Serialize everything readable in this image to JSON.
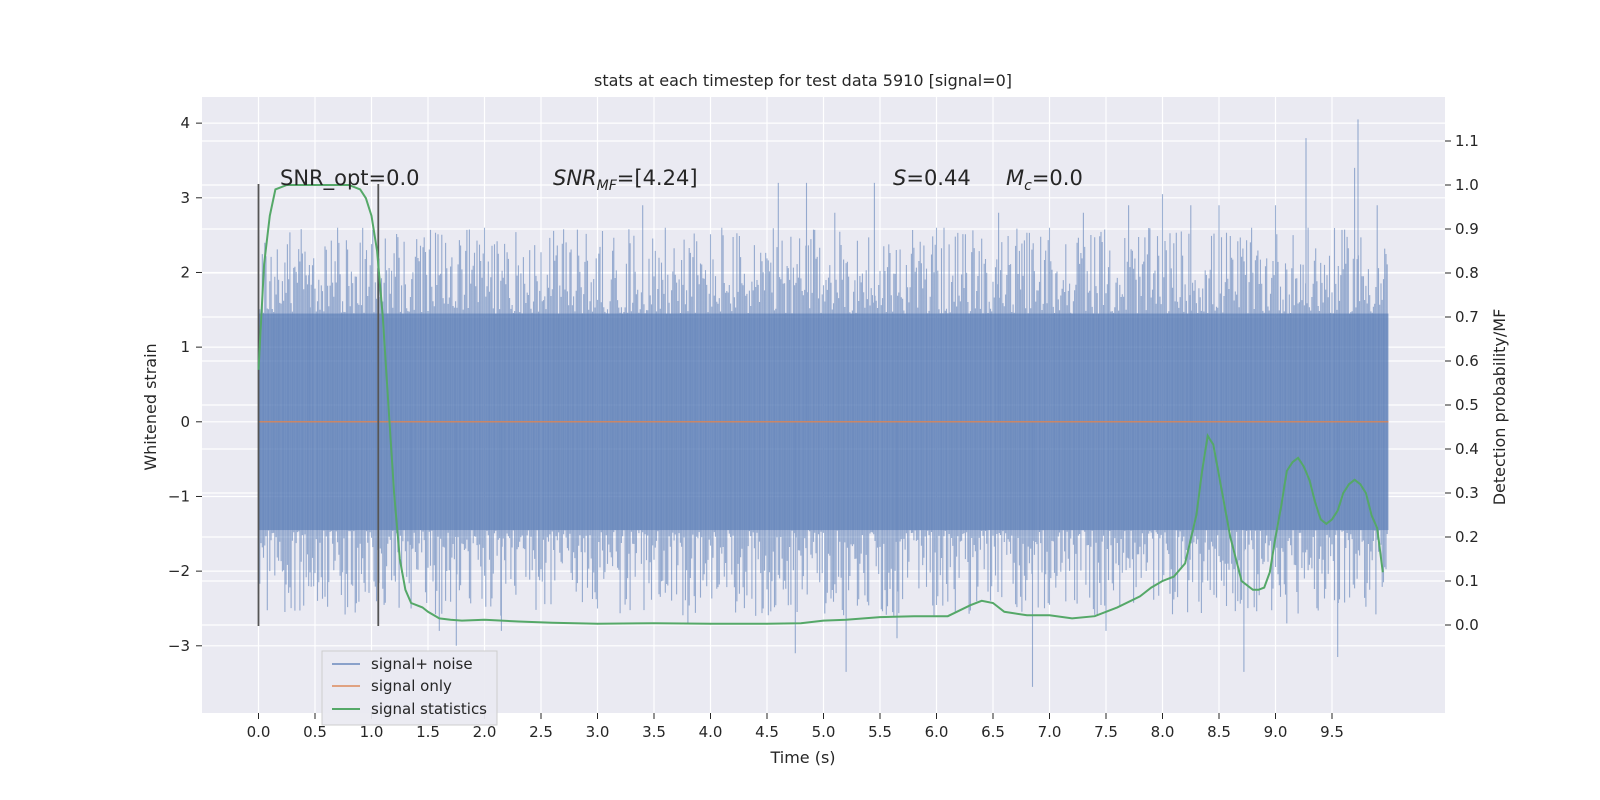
{
  "chart_data": {
    "type": "line",
    "title": "stats at each timestep for test data 5910 [signal=0]",
    "xlabel": "Time (s)",
    "ylabel": "Whitened strain",
    "y2label": "Detection probability/MF",
    "xlim": [
      -0.5,
      10.5
    ],
    "ylim": [
      -3.9,
      4.35
    ],
    "y2lim": [
      -0.2,
      1.2
    ],
    "x_ticks": [
      "0.0",
      "0.5",
      "1.0",
      "1.5",
      "2.0",
      "2.5",
      "3.0",
      "3.5",
      "4.0",
      "4.5",
      "5.0",
      "5.5",
      "6.0",
      "6.5",
      "7.0",
      "7.5",
      "8.0",
      "8.5",
      "9.0",
      "9.5"
    ],
    "y_ticks": [
      "4",
      "3",
      "2",
      "1",
      "0",
      "−1",
      "−2",
      "−3"
    ],
    "y2_ticks": [
      "1.1",
      "1.0",
      "0.9",
      "0.8",
      "0.7",
      "0.6",
      "0.5",
      "0.4",
      "0.3",
      "0.2",
      "0.1",
      "0.0"
    ],
    "grid": true,
    "legend_position": "bottom-left",
    "colors": {
      "background": "#eaeaf2",
      "grid": "#ffffff",
      "noise": "#4c72b0",
      "signal": "#dd8452",
      "stats": "#55a868",
      "vlines": "#555555"
    },
    "annotations": {
      "snr_opt": "SNR_opt=0.0",
      "snr_mf_base": "SNR",
      "snr_mf_sub": "MF",
      "snr_mf_value": "=[4.24]",
      "s_label": "S",
      "s_value": "=0.44",
      "mc_base": "M",
      "mc_sub": "c",
      "mc_value": "=0.0"
    },
    "vertical_lines_x": [
      0.0,
      1.06
    ],
    "vertical_lines_y2_range": [
      0.0,
      1.0
    ],
    "series": [
      {
        "name": "signal+ noise",
        "style": "noise band",
        "x_range": [
          0.0,
          10.0
        ],
        "core_range": [
          -1.45,
          1.45
        ],
        "extremes": [
          {
            "x": 0.0,
            "y": -2.3
          },
          {
            "x": 0.1,
            "y": -2.0
          },
          {
            "x": 0.45,
            "y": 2.1
          },
          {
            "x": 0.7,
            "y": 2.6
          },
          {
            "x": 0.9,
            "y": 2.4
          },
          {
            "x": 1.06,
            "y": -2.3
          },
          {
            "x": 1.2,
            "y": 2.2
          },
          {
            "x": 1.35,
            "y": -2.5
          },
          {
            "x": 1.6,
            "y": -2.8
          },
          {
            "x": 1.75,
            "y": -3.0
          },
          {
            "x": 2.0,
            "y": 2.6
          },
          {
            "x": 2.15,
            "y": -2.8
          },
          {
            "x": 2.4,
            "y": 2.3
          },
          {
            "x": 2.7,
            "y": 2.5
          },
          {
            "x": 3.0,
            "y": -2.5
          },
          {
            "x": 3.4,
            "y": 2.9
          },
          {
            "x": 3.6,
            "y": 2.6
          },
          {
            "x": 3.8,
            "y": -2.7
          },
          {
            "x": 4.1,
            "y": 2.6
          },
          {
            "x": 4.4,
            "y": -2.6
          },
          {
            "x": 4.6,
            "y": 3.2
          },
          {
            "x": 4.75,
            "y": -3.1
          },
          {
            "x": 4.85,
            "y": 3.2
          },
          {
            "x": 5.1,
            "y": 2.8
          },
          {
            "x": 5.2,
            "y": -3.35
          },
          {
            "x": 5.45,
            "y": 3.2
          },
          {
            "x": 5.65,
            "y": -2.9
          },
          {
            "x": 6.0,
            "y": 2.6
          },
          {
            "x": 6.3,
            "y": -2.5
          },
          {
            "x": 6.55,
            "y": 2.8
          },
          {
            "x": 6.85,
            "y": -3.55
          },
          {
            "x": 7.0,
            "y": 2.6
          },
          {
            "x": 7.3,
            "y": 2.8
          },
          {
            "x": 7.5,
            "y": -2.8
          },
          {
            "x": 7.7,
            "y": 2.9
          },
          {
            "x": 8.0,
            "y": 3.05
          },
          {
            "x": 8.25,
            "y": 2.9
          },
          {
            "x": 8.5,
            "y": 2.9
          },
          {
            "x": 8.72,
            "y": -3.35
          },
          {
            "x": 9.0,
            "y": 2.9
          },
          {
            "x": 9.1,
            "y": -2.7
          },
          {
            "x": 9.27,
            "y": 3.8
          },
          {
            "x": 9.55,
            "y": -3.15
          },
          {
            "x": 9.7,
            "y": 3.4
          },
          {
            "x": 9.73,
            "y": 4.05
          },
          {
            "x": 9.9,
            "y": 2.9
          }
        ]
      },
      {
        "name": "signal only",
        "x": [
          0.0,
          10.0
        ],
        "y": [
          0.0,
          0.0
        ]
      },
      {
        "name": "signal statistics",
        "axis": "right",
        "x": [
          0.0,
          0.05,
          0.1,
          0.15,
          0.25,
          0.35,
          0.5,
          0.6,
          0.7,
          0.8,
          0.9,
          0.95,
          1.0,
          1.05,
          1.1,
          1.15,
          1.2,
          1.25,
          1.3,
          1.35,
          1.4,
          1.45,
          1.5,
          1.6,
          1.7,
          1.8,
          2.0,
          2.3,
          2.6,
          3.0,
          3.5,
          4.0,
          4.5,
          4.8,
          5.0,
          5.2,
          5.5,
          5.8,
          6.1,
          6.3,
          6.4,
          6.5,
          6.6,
          6.8,
          7.0,
          7.2,
          7.4,
          7.6,
          7.8,
          7.9,
          8.0,
          8.1,
          8.2,
          8.3,
          8.35,
          8.4,
          8.45,
          8.5,
          8.6,
          8.7,
          8.8,
          8.85,
          8.9,
          8.95,
          9.0,
          9.05,
          9.1,
          9.15,
          9.2,
          9.25,
          9.3,
          9.35,
          9.4,
          9.45,
          9.5,
          9.55,
          9.6,
          9.65,
          9.7,
          9.75,
          9.8,
          9.85,
          9.9,
          9.95
        ],
        "y": [
          0.58,
          0.82,
          0.93,
          0.99,
          1.0,
          1.0,
          1.0,
          1.0,
          1.0,
          1.0,
          0.99,
          0.97,
          0.93,
          0.85,
          0.7,
          0.5,
          0.3,
          0.15,
          0.08,
          0.05,
          0.045,
          0.04,
          0.03,
          0.015,
          0.012,
          0.01,
          0.012,
          0.008,
          0.005,
          0.003,
          0.004,
          0.003,
          0.003,
          0.004,
          0.01,
          0.012,
          0.018,
          0.02,
          0.02,
          0.045,
          0.055,
          0.05,
          0.03,
          0.022,
          0.022,
          0.015,
          0.02,
          0.04,
          0.065,
          0.085,
          0.1,
          0.11,
          0.14,
          0.25,
          0.35,
          0.43,
          0.41,
          0.34,
          0.2,
          0.1,
          0.08,
          0.08,
          0.085,
          0.12,
          0.2,
          0.27,
          0.35,
          0.37,
          0.38,
          0.36,
          0.33,
          0.28,
          0.24,
          0.23,
          0.24,
          0.26,
          0.3,
          0.32,
          0.33,
          0.32,
          0.3,
          0.25,
          0.22,
          0.12
        ]
      }
    ]
  }
}
